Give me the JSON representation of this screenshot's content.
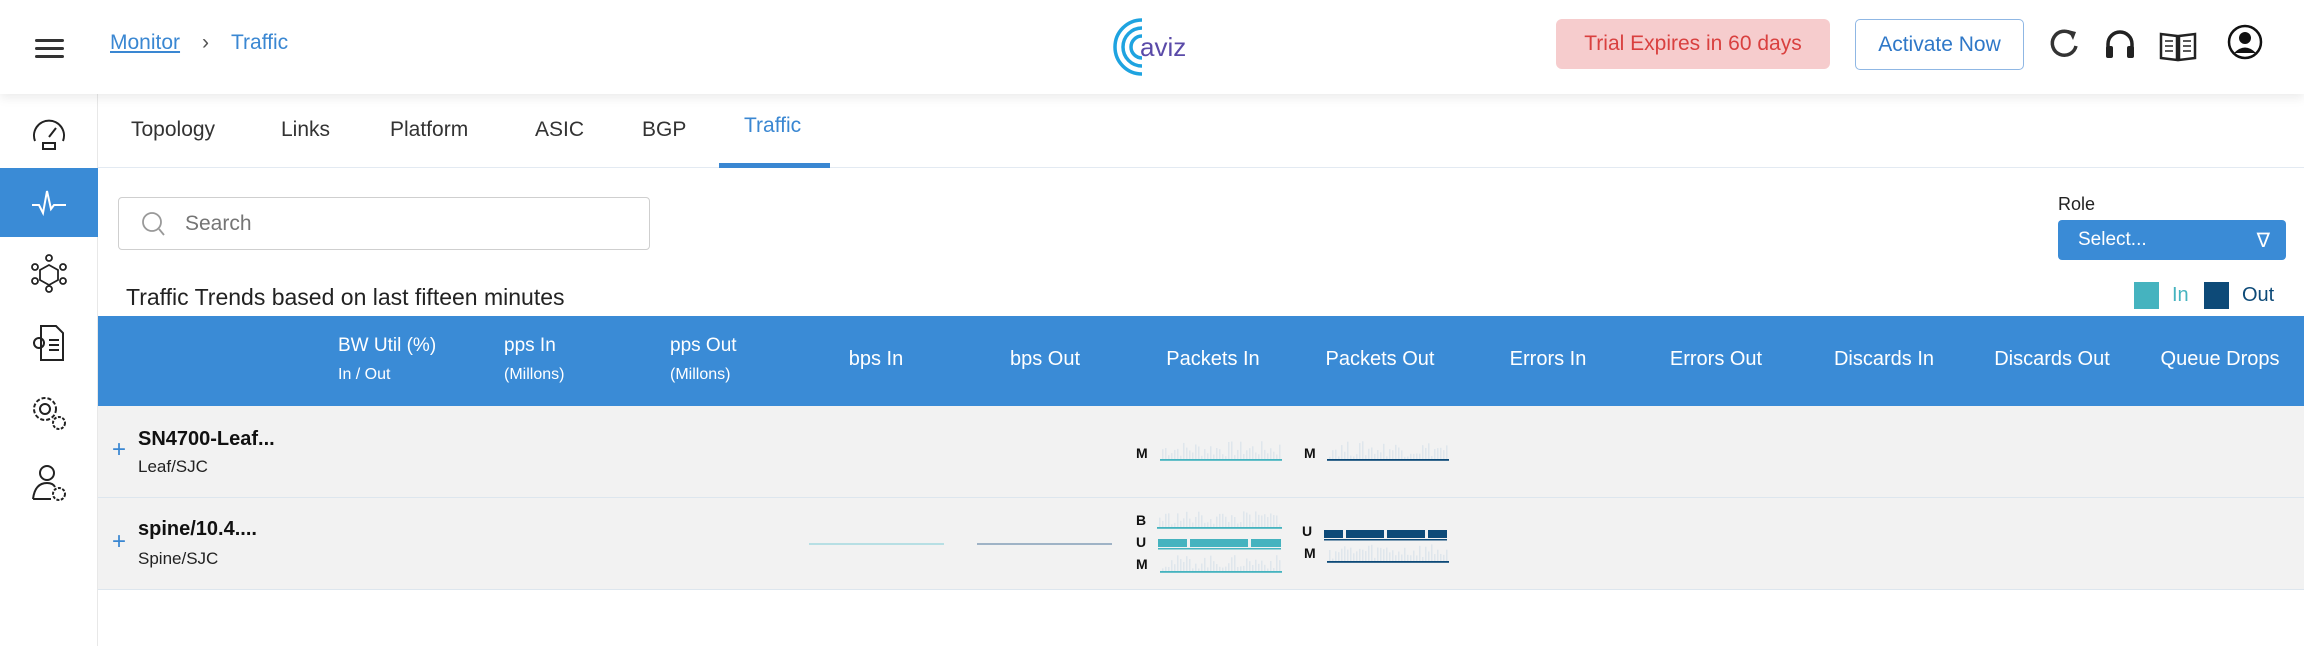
{
  "header": {
    "breadcrumb": [
      "Monitor",
      "Traffic"
    ],
    "breadcrumb_sep": "›",
    "logo_text": "aviz",
    "trial": "Trial Expires in 60 days",
    "activate": "Activate Now",
    "icons": [
      "refresh-icon",
      "headset-icon",
      "book-icon",
      "user-icon"
    ]
  },
  "sidebar": {
    "items": [
      {
        "icon": "dashboard-gauge-icon"
      },
      {
        "icon": "pulse-icon",
        "active": true
      },
      {
        "icon": "network-cube-icon"
      },
      {
        "icon": "config-file-icon"
      },
      {
        "icon": "settings-gears-icon"
      },
      {
        "icon": "user-settings-icon"
      }
    ]
  },
  "tabs": [
    {
      "label": "Topology"
    },
    {
      "label": "Links"
    },
    {
      "label": "Platform"
    },
    {
      "label": "ASIC"
    },
    {
      "label": "BGP"
    },
    {
      "label": "Traffic",
      "active": true
    }
  ],
  "search": {
    "placeholder": "Search"
  },
  "role": {
    "label": "Role",
    "value": "Select..."
  },
  "title": "Traffic Trends based on last fifteen minutes",
  "legend": {
    "in": "In",
    "out": "Out",
    "in_color": "#45b3bf",
    "out_color": "#0d4a78"
  },
  "table": {
    "columns": {
      "bw": "BW Util (%)",
      "bw_sub": "In / Out",
      "pps_in": "pps In",
      "pps_in_sub": "(Millons)",
      "pps_out": "pps Out",
      "pps_out_sub": "(Millons)",
      "bps_in": "bps In",
      "bps_out": "bps Out",
      "packets_in": "Packets In",
      "packets_out": "Packets Out",
      "errors_in": "Errors In",
      "errors_out": "Errors Out",
      "discards_in": "Discards In",
      "discards_out": "Discards Out",
      "queue_drops": "Queue Drops"
    },
    "rows": [
      {
        "name": "SN4700-Leaf...",
        "sub": "Leaf/SJC",
        "packets_in": [
          "M"
        ],
        "packets_out": [
          "M"
        ]
      },
      {
        "name": "spine/10.4....",
        "sub": "Spine/SJC",
        "packets_in": [
          "B",
          "U",
          "M"
        ],
        "packets_out": [
          "U",
          "M"
        ]
      }
    ]
  }
}
